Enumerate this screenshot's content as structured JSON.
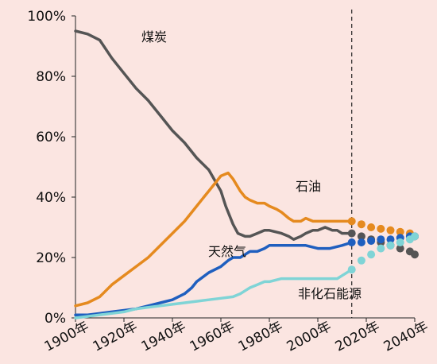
{
  "chart_data": {
    "type": "line",
    "title": "",
    "xlabel": "",
    "ylabel": "",
    "xlim": [
      1900,
      2040
    ],
    "ylim": [
      0,
      100
    ],
    "grid": false,
    "x_ticks": [
      "1900年",
      "1920年",
      "1940年",
      "1960年",
      "1980年",
      "2000年",
      "2020年",
      "2040年"
    ],
    "y_ticks": [
      "0%",
      "20%",
      "40%",
      "60%",
      "80%",
      "100%"
    ],
    "projection_start": 2014,
    "series": [
      {
        "name": "煤炭",
        "color": "#555555",
        "points": [
          [
            1900,
            95
          ],
          [
            1905,
            94
          ],
          [
            1910,
            92
          ],
          [
            1915,
            86
          ],
          [
            1920,
            81
          ],
          [
            1925,
            76
          ],
          [
            1930,
            72
          ],
          [
            1935,
            67
          ],
          [
            1940,
            62
          ],
          [
            1945,
            58
          ],
          [
            1950,
            53
          ],
          [
            1955,
            49
          ],
          [
            1960,
            42
          ],
          [
            1962,
            37
          ],
          [
            1965,
            31
          ],
          [
            1967,
            28
          ],
          [
            1970,
            27
          ],
          [
            1972,
            27
          ],
          [
            1975,
            28
          ],
          [
            1978,
            29
          ],
          [
            1980,
            29
          ],
          [
            1985,
            28
          ],
          [
            1988,
            27
          ],
          [
            1990,
            26
          ],
          [
            1993,
            27
          ],
          [
            1995,
            28
          ],
          [
            1998,
            29
          ],
          [
            2000,
            29
          ],
          [
            2003,
            30
          ],
          [
            2006,
            29
          ],
          [
            2008,
            29
          ],
          [
            2010,
            28
          ],
          [
            2012,
            28
          ],
          [
            2014,
            28
          ]
        ],
        "proj_points": [
          [
            2014,
            28
          ],
          [
            2018,
            27
          ],
          [
            2022,
            26
          ],
          [
            2026,
            25
          ],
          [
            2030,
            24
          ],
          [
            2034,
            23
          ],
          [
            2038,
            22
          ],
          [
            2040,
            21
          ]
        ]
      },
      {
        "name": "石油",
        "color": "#e58a1f",
        "points": [
          [
            1900,
            4
          ],
          [
            1905,
            5
          ],
          [
            1910,
            7
          ],
          [
            1915,
            11
          ],
          [
            1920,
            14
          ],
          [
            1925,
            17
          ],
          [
            1930,
            20
          ],
          [
            1935,
            24
          ],
          [
            1940,
            28
          ],
          [
            1945,
            32
          ],
          [
            1948,
            35
          ],
          [
            1950,
            37
          ],
          [
            1953,
            40
          ],
          [
            1955,
            42
          ],
          [
            1958,
            45
          ],
          [
            1960,
            47
          ],
          [
            1963,
            48
          ],
          [
            1965,
            46
          ],
          [
            1968,
            42
          ],
          [
            1970,
            40
          ],
          [
            1972,
            39
          ],
          [
            1975,
            38
          ],
          [
            1978,
            38
          ],
          [
            1980,
            37
          ],
          [
            1983,
            36
          ],
          [
            1985,
            35
          ],
          [
            1988,
            33
          ],
          [
            1990,
            32
          ],
          [
            1993,
            32
          ],
          [
            1995,
            33
          ],
          [
            1998,
            32
          ],
          [
            2000,
            32
          ],
          [
            2005,
            32
          ],
          [
            2010,
            32
          ],
          [
            2014,
            32
          ]
        ],
        "proj_points": [
          [
            2014,
            32
          ],
          [
            2018,
            31
          ],
          [
            2022,
            30
          ],
          [
            2026,
            29.5
          ],
          [
            2030,
            29
          ],
          [
            2034,
            28.5
          ],
          [
            2038,
            28
          ],
          [
            2040,
            27
          ]
        ]
      },
      {
        "name": "天然气",
        "color": "#1f5fbf",
        "points": [
          [
            1900,
            1
          ],
          [
            1905,
            1
          ],
          [
            1910,
            1.5
          ],
          [
            1915,
            2
          ],
          [
            1920,
            2.5
          ],
          [
            1925,
            3
          ],
          [
            1930,
            4
          ],
          [
            1935,
            5
          ],
          [
            1940,
            6
          ],
          [
            1945,
            8
          ],
          [
            1948,
            10
          ],
          [
            1950,
            12
          ],
          [
            1955,
            15
          ],
          [
            1960,
            17
          ],
          [
            1963,
            19
          ],
          [
            1965,
            20
          ],
          [
            1968,
            20
          ],
          [
            1970,
            21
          ],
          [
            1972,
            22
          ],
          [
            1975,
            22
          ],
          [
            1978,
            23
          ],
          [
            1980,
            24
          ],
          [
            1985,
            24
          ],
          [
            1990,
            24
          ],
          [
            1995,
            24
          ],
          [
            2000,
            23
          ],
          [
            2005,
            23
          ],
          [
            2010,
            24
          ],
          [
            2014,
            25
          ]
        ],
        "proj_points": [
          [
            2014,
            25
          ],
          [
            2018,
            25
          ],
          [
            2022,
            25.5
          ],
          [
            2026,
            26
          ],
          [
            2030,
            26
          ],
          [
            2034,
            26.5
          ],
          [
            2038,
            27
          ],
          [
            2040,
            27
          ]
        ]
      },
      {
        "name": "非化石能源",
        "color": "#7fd4d6",
        "points": [
          [
            1900,
            0
          ],
          [
            1905,
            0.5
          ],
          [
            1910,
            1
          ],
          [
            1915,
            1.5
          ],
          [
            1920,
            2
          ],
          [
            1925,
            3
          ],
          [
            1930,
            3.5
          ],
          [
            1935,
            4
          ],
          [
            1940,
            4.5
          ],
          [
            1945,
            5
          ],
          [
            1950,
            5.5
          ],
          [
            1955,
            6
          ],
          [
            1960,
            6.5
          ],
          [
            1965,
            7
          ],
          [
            1968,
            8
          ],
          [
            1970,
            9
          ],
          [
            1972,
            10
          ],
          [
            1975,
            11
          ],
          [
            1978,
            12
          ],
          [
            1980,
            12
          ],
          [
            1985,
            13
          ],
          [
            1990,
            13
          ],
          [
            1995,
            13
          ],
          [
            2000,
            13
          ],
          [
            2005,
            13
          ],
          [
            2008,
            13
          ],
          [
            2010,
            14
          ],
          [
            2014,
            16
          ]
        ],
        "proj_points": [
          [
            2014,
            16
          ],
          [
            2018,
            19
          ],
          [
            2022,
            21
          ],
          [
            2026,
            23
          ],
          [
            2030,
            24
          ],
          [
            2034,
            25
          ],
          [
            2038,
            26
          ],
          [
            2040,
            27
          ]
        ]
      }
    ]
  }
}
